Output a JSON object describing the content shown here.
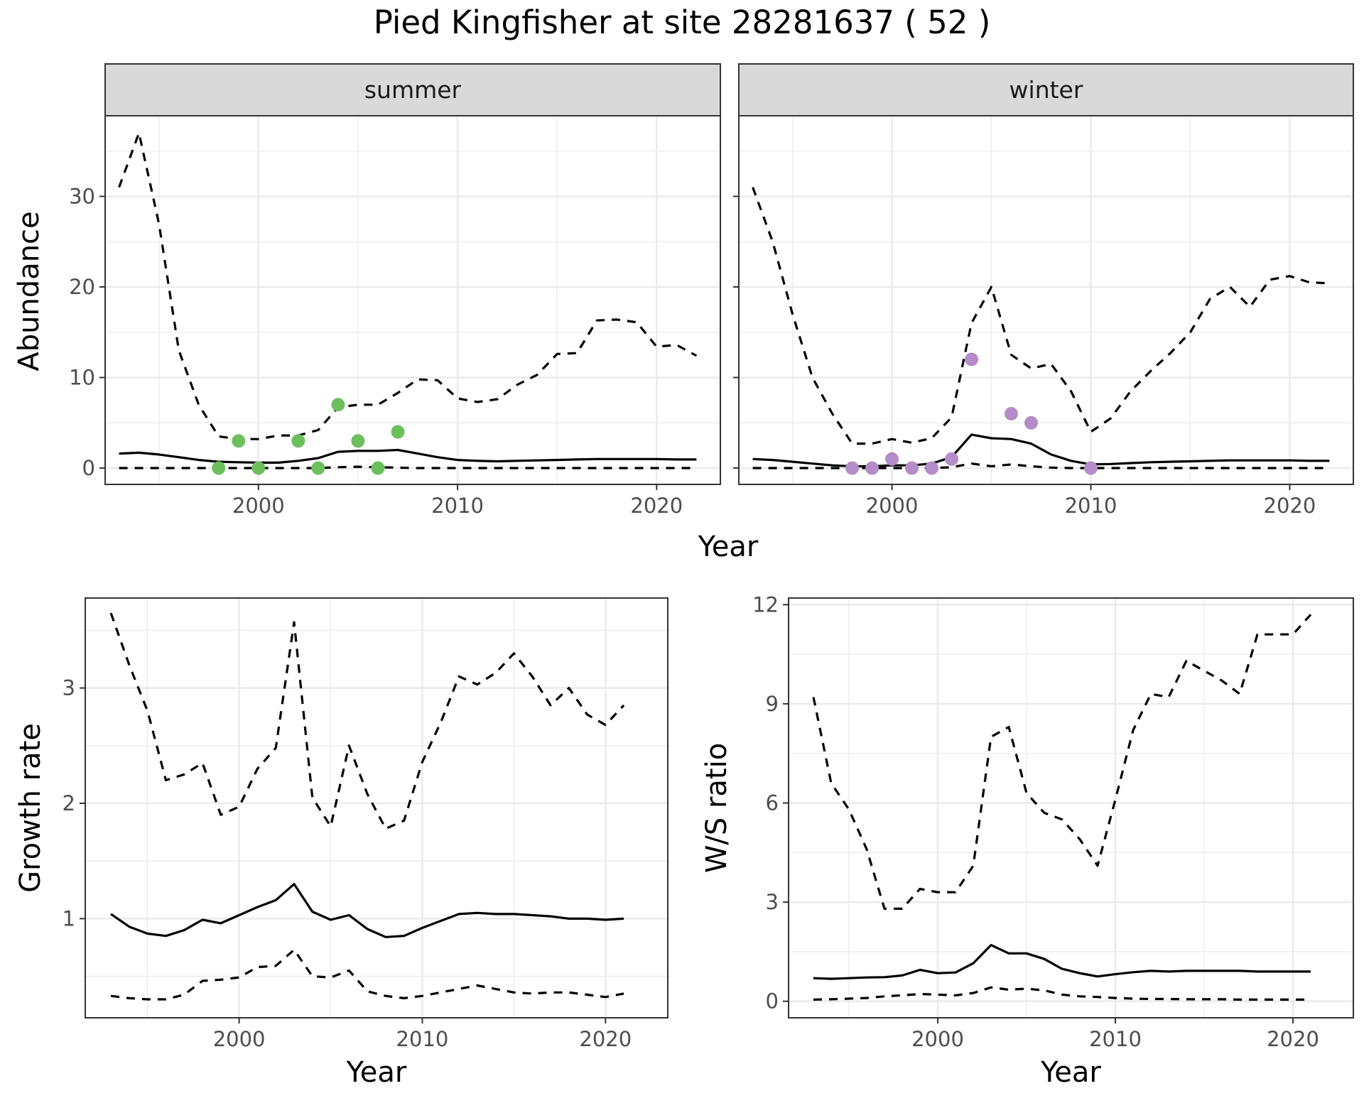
{
  "title": "Pied Kingfisher at site 28281637 ( 52 )",
  "chart_data": [
    {
      "type": "line",
      "facet": "summer",
      "xlabel": "Year",
      "ylabel": "Abundance",
      "xlim": [
        1992.3,
        2023.2
      ],
      "ylim": [
        -1.8,
        38.9
      ],
      "x_ticks": [
        2000,
        2010,
        2020
      ],
      "y_ticks": [
        0,
        10,
        20,
        30
      ],
      "grid": true,
      "point_color": "#6dbf5e",
      "mean": {
        "x": [
          1993,
          1994,
          1995,
          1996,
          1997,
          1998,
          1999,
          2000,
          2001,
          2002,
          2003,
          2004,
          2005,
          2006,
          2007,
          2008,
          2009,
          2010,
          2011,
          2012,
          2013,
          2014,
          2015,
          2016,
          2017,
          2018,
          2019,
          2020,
          2021,
          2022
        ],
        "y": [
          1.6,
          1.7,
          1.5,
          1.2,
          0.9,
          0.7,
          0.65,
          0.6,
          0.6,
          0.8,
          1.1,
          1.8,
          1.9,
          1.9,
          2.0,
          1.6,
          1.2,
          0.9,
          0.8,
          0.75,
          0.8,
          0.85,
          0.9,
          0.95,
          1.0,
          1.0,
          1.0,
          1.0,
          0.95,
          0.95
        ]
      },
      "upper": {
        "x": [
          1993,
          1994,
          1995,
          1996,
          1997,
          1998,
          1999,
          2000,
          2001,
          2002,
          2003,
          2004,
          2005,
          2006,
          2007,
          2008,
          2009,
          2010,
          2011,
          2012,
          2013,
          2014,
          2015,
          2016,
          2017,
          2018,
          2019,
          2020,
          2021,
          2022
        ],
        "y": [
          31,
          37,
          27,
          13,
          7,
          3.5,
          3.2,
          3.2,
          3.6,
          3.6,
          4.2,
          6.7,
          7.0,
          7.0,
          8.3,
          9.8,
          9.7,
          7.7,
          7.3,
          7.6,
          9.2,
          10.3,
          12.6,
          12.7,
          16.3,
          16.4,
          16.1,
          13.4,
          13.6,
          12.4
        ]
      },
      "lower": {
        "x": [
          1993,
          1994,
          1995,
          1996,
          1997,
          1998,
          1999,
          2000,
          2001,
          2002,
          2003,
          2004,
          2005,
          2006,
          2007,
          2008,
          2009,
          2010,
          2011,
          2012,
          2013,
          2014,
          2015,
          2016,
          2017,
          2018,
          2019,
          2020,
          2021,
          2022
        ],
        "y": [
          0,
          0,
          0,
          0,
          0,
          0,
          0,
          0,
          0,
          0,
          0,
          0.1,
          0.15,
          0.1,
          0.05,
          0,
          0,
          0,
          0,
          0,
          0,
          0,
          0,
          0,
          0,
          0,
          0,
          0,
          0,
          0
        ]
      },
      "points": {
        "x": [
          1998,
          1999,
          2000,
          2002,
          2003,
          2004,
          2005,
          2006,
          2007
        ],
        "y": [
          0,
          3,
          0,
          3,
          0,
          7,
          3,
          0,
          4
        ]
      }
    },
    {
      "type": "line",
      "facet": "winter",
      "xlabel": "Year",
      "ylabel": "Abundance",
      "xlim": [
        1992.3,
        2023.2
      ],
      "ylim": [
        -1.8,
        38.9
      ],
      "x_ticks": [
        2000,
        2010,
        2020
      ],
      "y_ticks": [
        0,
        10,
        20,
        30
      ],
      "grid": true,
      "point_color": "#b48cc8",
      "mean": {
        "x": [
          1993,
          1994,
          1995,
          1996,
          1997,
          1998,
          1999,
          2000,
          2001,
          2002,
          2003,
          2004,
          2005,
          2006,
          2007,
          2008,
          2009,
          2010,
          2011,
          2012,
          2013,
          2014,
          2015,
          2016,
          2017,
          2018,
          2019,
          2020,
          2021,
          2022
        ],
        "y": [
          1.0,
          0.9,
          0.7,
          0.5,
          0.3,
          0.2,
          0.2,
          0.3,
          0.3,
          0.5,
          1.2,
          3.7,
          3.3,
          3.2,
          2.7,
          1.5,
          0.8,
          0.4,
          0.45,
          0.55,
          0.65,
          0.7,
          0.75,
          0.8,
          0.85,
          0.85,
          0.85,
          0.85,
          0.8,
          0.8
        ]
      },
      "upper": {
        "x": [
          1993,
          1994,
          1995,
          1996,
          1997,
          1998,
          1999,
          2000,
          2001,
          2002,
          2003,
          2004,
          2005,
          2006,
          2007,
          2008,
          2009,
          2010,
          2011,
          2012,
          2013,
          2014,
          2015,
          2016,
          2017,
          2018,
          2019,
          2020,
          2021,
          2022
        ],
        "y": [
          31,
          25,
          17,
          10,
          6,
          2.7,
          2.7,
          3.2,
          2.8,
          3.3,
          5.6,
          16,
          20,
          12.5,
          11,
          11.5,
          8.5,
          4,
          5.5,
          8.5,
          10.7,
          12.7,
          15,
          18.7,
          20,
          17.8,
          20.8,
          21.2,
          20.5,
          20.4
        ]
      },
      "lower": {
        "x": [
          1993,
          1994,
          1995,
          1996,
          1997,
          1998,
          1999,
          2000,
          2001,
          2002,
          2003,
          2004,
          2005,
          2006,
          2007,
          2008,
          2009,
          2010,
          2011,
          2012,
          2013,
          2014,
          2015,
          2016,
          2017,
          2018,
          2019,
          2020,
          2021,
          2022
        ],
        "y": [
          0,
          0,
          0,
          0,
          0,
          0,
          0,
          0,
          0,
          0,
          0.1,
          0.5,
          0.2,
          0.4,
          0.2,
          0.05,
          0,
          0,
          0,
          0,
          0,
          0,
          0,
          0,
          0,
          0,
          0,
          0,
          0,
          0
        ]
      },
      "points": {
        "x": [
          1998,
          1999,
          2000,
          2001,
          2002,
          2003,
          2004,
          2006,
          2007,
          2010
        ],
        "y": [
          0,
          0,
          1,
          0,
          0,
          1,
          12,
          6,
          5,
          0
        ]
      }
    },
    {
      "type": "line",
      "xlabel": "Year",
      "ylabel": "Growth rate",
      "xlim": [
        1991.6,
        2023.4
      ],
      "ylim": [
        0.14,
        3.78
      ],
      "x_ticks": [
        2000,
        2010,
        2020
      ],
      "y_ticks": [
        1,
        2,
        3
      ],
      "grid": true,
      "mean": {
        "x": [
          1993,
          1994,
          1995,
          1996,
          1997,
          1998,
          1999,
          2000,
          2001,
          2002,
          2003,
          2004,
          2005,
          2006,
          2007,
          2008,
          2009,
          2010,
          2011,
          2012,
          2013,
          2014,
          2015,
          2016,
          2017,
          2018,
          2019,
          2020,
          2021
        ],
        "y": [
          1.04,
          0.93,
          0.87,
          0.85,
          0.9,
          0.99,
          0.96,
          1.03,
          1.1,
          1.16,
          1.3,
          1.06,
          0.99,
          1.03,
          0.91,
          0.84,
          0.85,
          0.92,
          0.98,
          1.04,
          1.05,
          1.04,
          1.04,
          1.03,
          1.02,
          1.0,
          1.0,
          0.99,
          1.0
        ]
      },
      "upper": {
        "x": [
          1993,
          1994,
          1995,
          1996,
          1997,
          1998,
          1999,
          2000,
          2001,
          2002,
          2003,
          2004,
          2005,
          2006,
          2007,
          2008,
          2009,
          2010,
          2011,
          2012,
          2013,
          2014,
          2015,
          2016,
          2017,
          2018,
          2019,
          2020,
          2021
        ],
        "y": [
          3.65,
          3.2,
          2.8,
          2.2,
          2.25,
          2.35,
          1.9,
          1.97,
          2.3,
          2.48,
          3.57,
          2.05,
          1.8,
          2.5,
          2.08,
          1.78,
          1.85,
          2.36,
          2.7,
          3.1,
          3.03,
          3.13,
          3.3,
          3.1,
          2.85,
          3.0,
          2.77,
          2.68,
          2.85
        ]
      },
      "lower": {
        "x": [
          1993,
          1994,
          1995,
          1996,
          1997,
          1998,
          1999,
          2000,
          2001,
          2002,
          2003,
          2004,
          2005,
          2006,
          2007,
          2008,
          2009,
          2010,
          2011,
          2012,
          2013,
          2014,
          2015,
          2016,
          2017,
          2018,
          2019,
          2020,
          2021
        ],
        "y": [
          0.33,
          0.31,
          0.3,
          0.3,
          0.34,
          0.46,
          0.47,
          0.49,
          0.58,
          0.59,
          0.73,
          0.5,
          0.49,
          0.55,
          0.37,
          0.33,
          0.31,
          0.33,
          0.36,
          0.39,
          0.42,
          0.39,
          0.36,
          0.35,
          0.36,
          0.36,
          0.34,
          0.32,
          0.35
        ]
      }
    },
    {
      "type": "line",
      "xlabel": "Year",
      "ylabel": "W/S ratio",
      "xlim": [
        1991.6,
        2023.4
      ],
      "ylim": [
        -0.5,
        12.2
      ],
      "x_ticks": [
        2000,
        2010,
        2020
      ],
      "y_ticks": [
        0,
        3,
        6,
        9,
        12
      ],
      "grid": true,
      "mean": {
        "x": [
          1993,
          1994,
          1995,
          1996,
          1997,
          1998,
          1999,
          2000,
          2001,
          2002,
          2003,
          2004,
          2005,
          2006,
          2007,
          2008,
          2009,
          2010,
          2011,
          2012,
          2013,
          2014,
          2015,
          2016,
          2017,
          2018,
          2019,
          2020,
          2021
        ],
        "y": [
          0.7,
          0.68,
          0.7,
          0.72,
          0.73,
          0.78,
          0.95,
          0.85,
          0.87,
          1.15,
          1.7,
          1.45,
          1.45,
          1.28,
          0.98,
          0.85,
          0.75,
          0.82,
          0.88,
          0.92,
          0.9,
          0.92,
          0.92,
          0.92,
          0.92,
          0.9,
          0.9,
          0.9,
          0.9
        ]
      },
      "upper": {
        "x": [
          1993,
          1994,
          1995,
          1996,
          1997,
          1998,
          1999,
          2000,
          2001,
          2002,
          2003,
          2004,
          2005,
          2006,
          2007,
          2008,
          2009,
          2010,
          2011,
          2012,
          2013,
          2014,
          2015,
          2016,
          2017,
          2018,
          2019,
          2020,
          2021
        ],
        "y": [
          9.2,
          6.6,
          5.8,
          4.6,
          2.8,
          2.8,
          3.4,
          3.3,
          3.3,
          4.1,
          8.0,
          8.3,
          6.3,
          5.7,
          5.5,
          4.9,
          4.1,
          6.1,
          8.2,
          9.3,
          9.2,
          10.3,
          10.0,
          9.7,
          9.3,
          11.1,
          11.1,
          11.1,
          11.7
        ]
      },
      "lower": {
        "x": [
          1993,
          1994,
          1995,
          1996,
          1997,
          1998,
          1999,
          2000,
          2001,
          2002,
          2003,
          2004,
          2005,
          2006,
          2007,
          2008,
          2009,
          2010,
          2011,
          2012,
          2013,
          2014,
          2015,
          2016,
          2017,
          2018,
          2019,
          2020,
          2021
        ],
        "y": [
          0.05,
          0.06,
          0.08,
          0.1,
          0.15,
          0.18,
          0.22,
          0.2,
          0.18,
          0.25,
          0.42,
          0.35,
          0.38,
          0.33,
          0.2,
          0.15,
          0.13,
          0.1,
          0.08,
          0.07,
          0.07,
          0.06,
          0.06,
          0.06,
          0.05,
          0.05,
          0.05,
          0.05,
          0.05
        ]
      }
    }
  ]
}
